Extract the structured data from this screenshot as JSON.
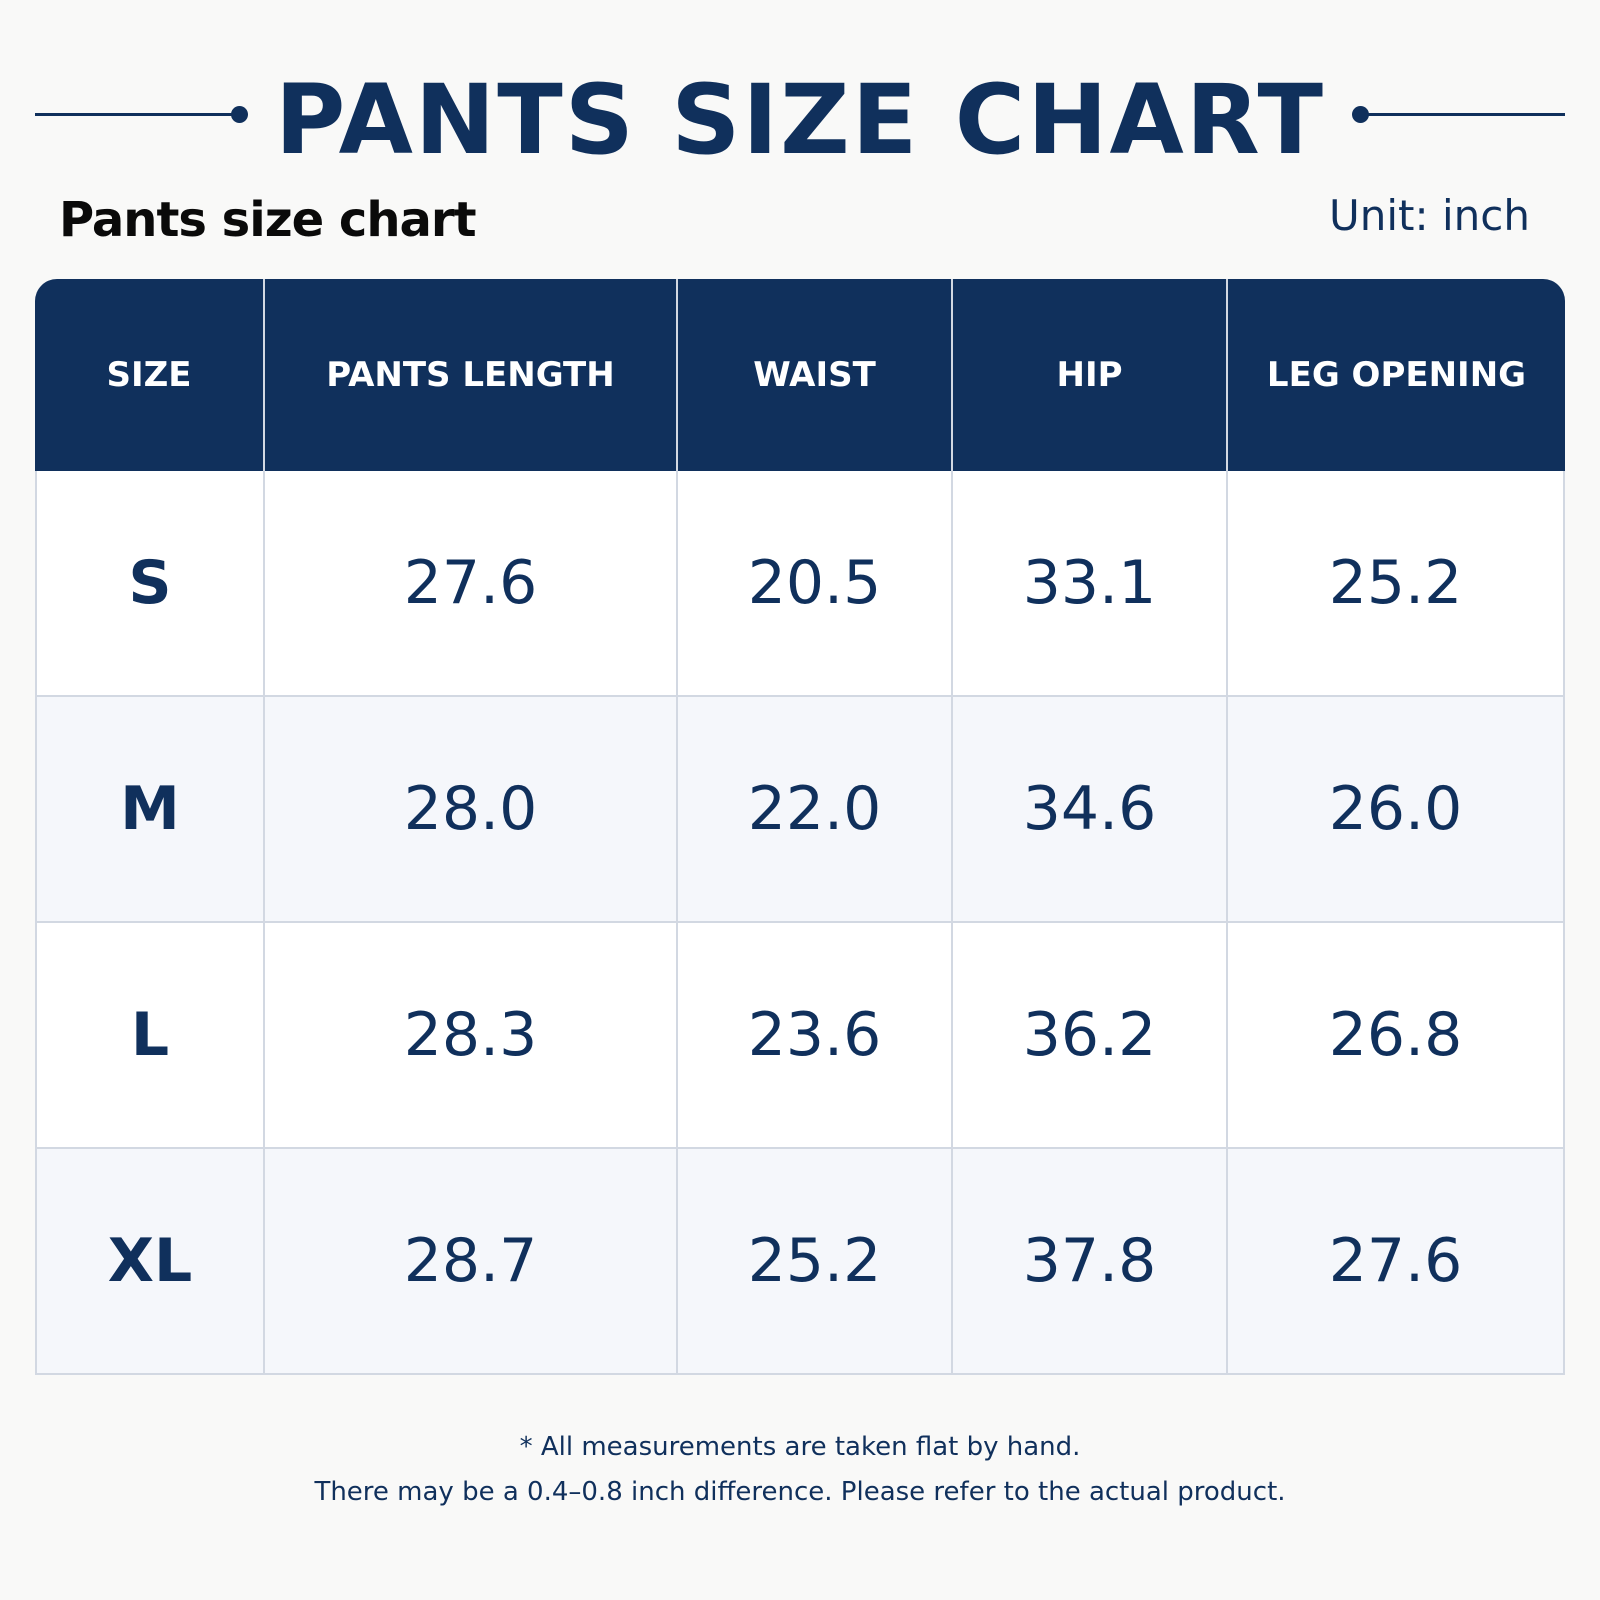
{
  "title": "PANTS SIZE CHART",
  "subtitle": "Pants size chart",
  "unit": "Unit: inch",
  "table": {
    "headers": [
      "SIZE",
      "PANTS LENGTH",
      "WAIST",
      "HIP",
      "LEG OPENING"
    ],
    "rows": [
      [
        "S",
        "27.6",
        "20.5",
        "33.1",
        "25.2"
      ],
      [
        "M",
        "28.0",
        "22.0",
        "34.6",
        "26.0"
      ],
      [
        "L",
        "28.3",
        "23.6",
        "36.2",
        "26.8"
      ],
      [
        "XL",
        "28.7",
        "25.2",
        "37.8",
        "27.6"
      ]
    ]
  },
  "notes": {
    "line1": "* All measurements are taken flat by hand.",
    "line2": "There may be a 0.4–0.8 inch difference. Please refer to the actual product."
  },
  "colors": {
    "navy": "#10305c",
    "grid": "#d2d8e2",
    "alt_row": "#f5f7fb"
  }
}
